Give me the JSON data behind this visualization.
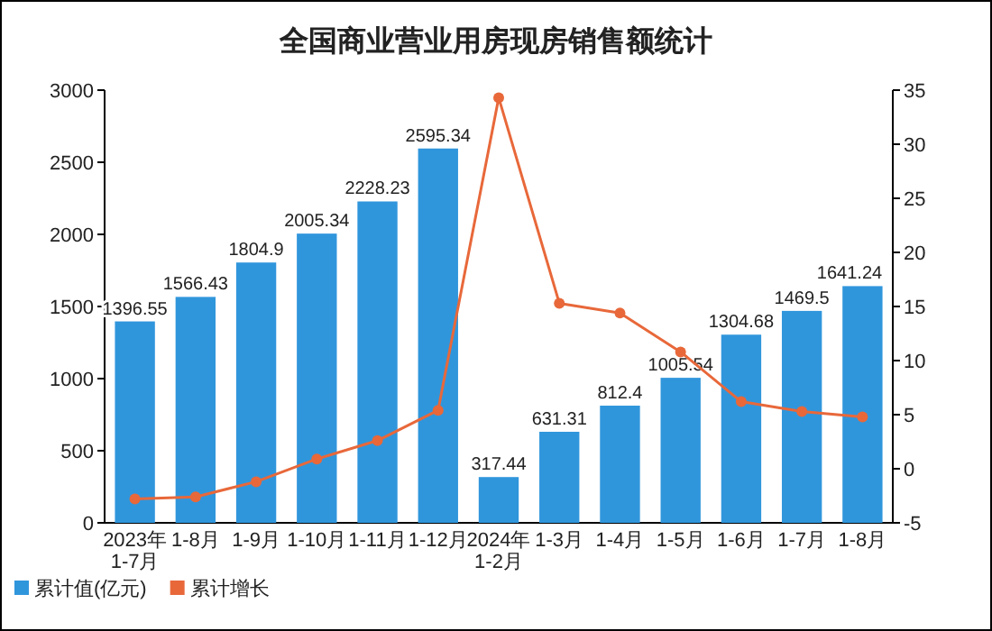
{
  "chart_data": {
    "type": "bar",
    "title": "全国商业营业用房现房销售额统计",
    "categories": [
      "2023年\n1-7月",
      "1-8月",
      "1-9月",
      "1-10月",
      "1-11月",
      "1-12月",
      "2024年\n1-2月",
      "1-3月",
      "1-4月",
      "1-5月",
      "1-6月",
      "1-7月",
      "1-8月"
    ],
    "series": [
      {
        "name": "累计值(亿元)",
        "color": "#3096dc",
        "values": [
          1396.55,
          1566.43,
          1804.9,
          2005.34,
          2228.23,
          2595.34,
          317.44,
          631.31,
          812.4,
          1005.54,
          1304.68,
          1469.5,
          1641.24
        ],
        "data_labels": true
      },
      {
        "name": "累计增长",
        "type": "line",
        "axis": "y2",
        "color": "#e8683a",
        "marker": "circle",
        "values": [
          -2.8,
          -2.6,
          -1.2,
          0.9,
          2.6,
          5.4,
          34.3,
          15.3,
          14.4,
          10.8,
          6.2,
          5.3,
          4.8
        ]
      }
    ],
    "ylim": [
      0,
      3000
    ],
    "yticks": [
      0,
      500,
      1000,
      1500,
      2000,
      2500,
      3000
    ],
    "y2lim": [
      -5,
      35
    ],
    "y2ticks": [
      -5,
      0,
      5,
      10,
      15,
      20,
      25,
      30,
      35
    ],
    "legend": "bottom left",
    "grid": false
  }
}
